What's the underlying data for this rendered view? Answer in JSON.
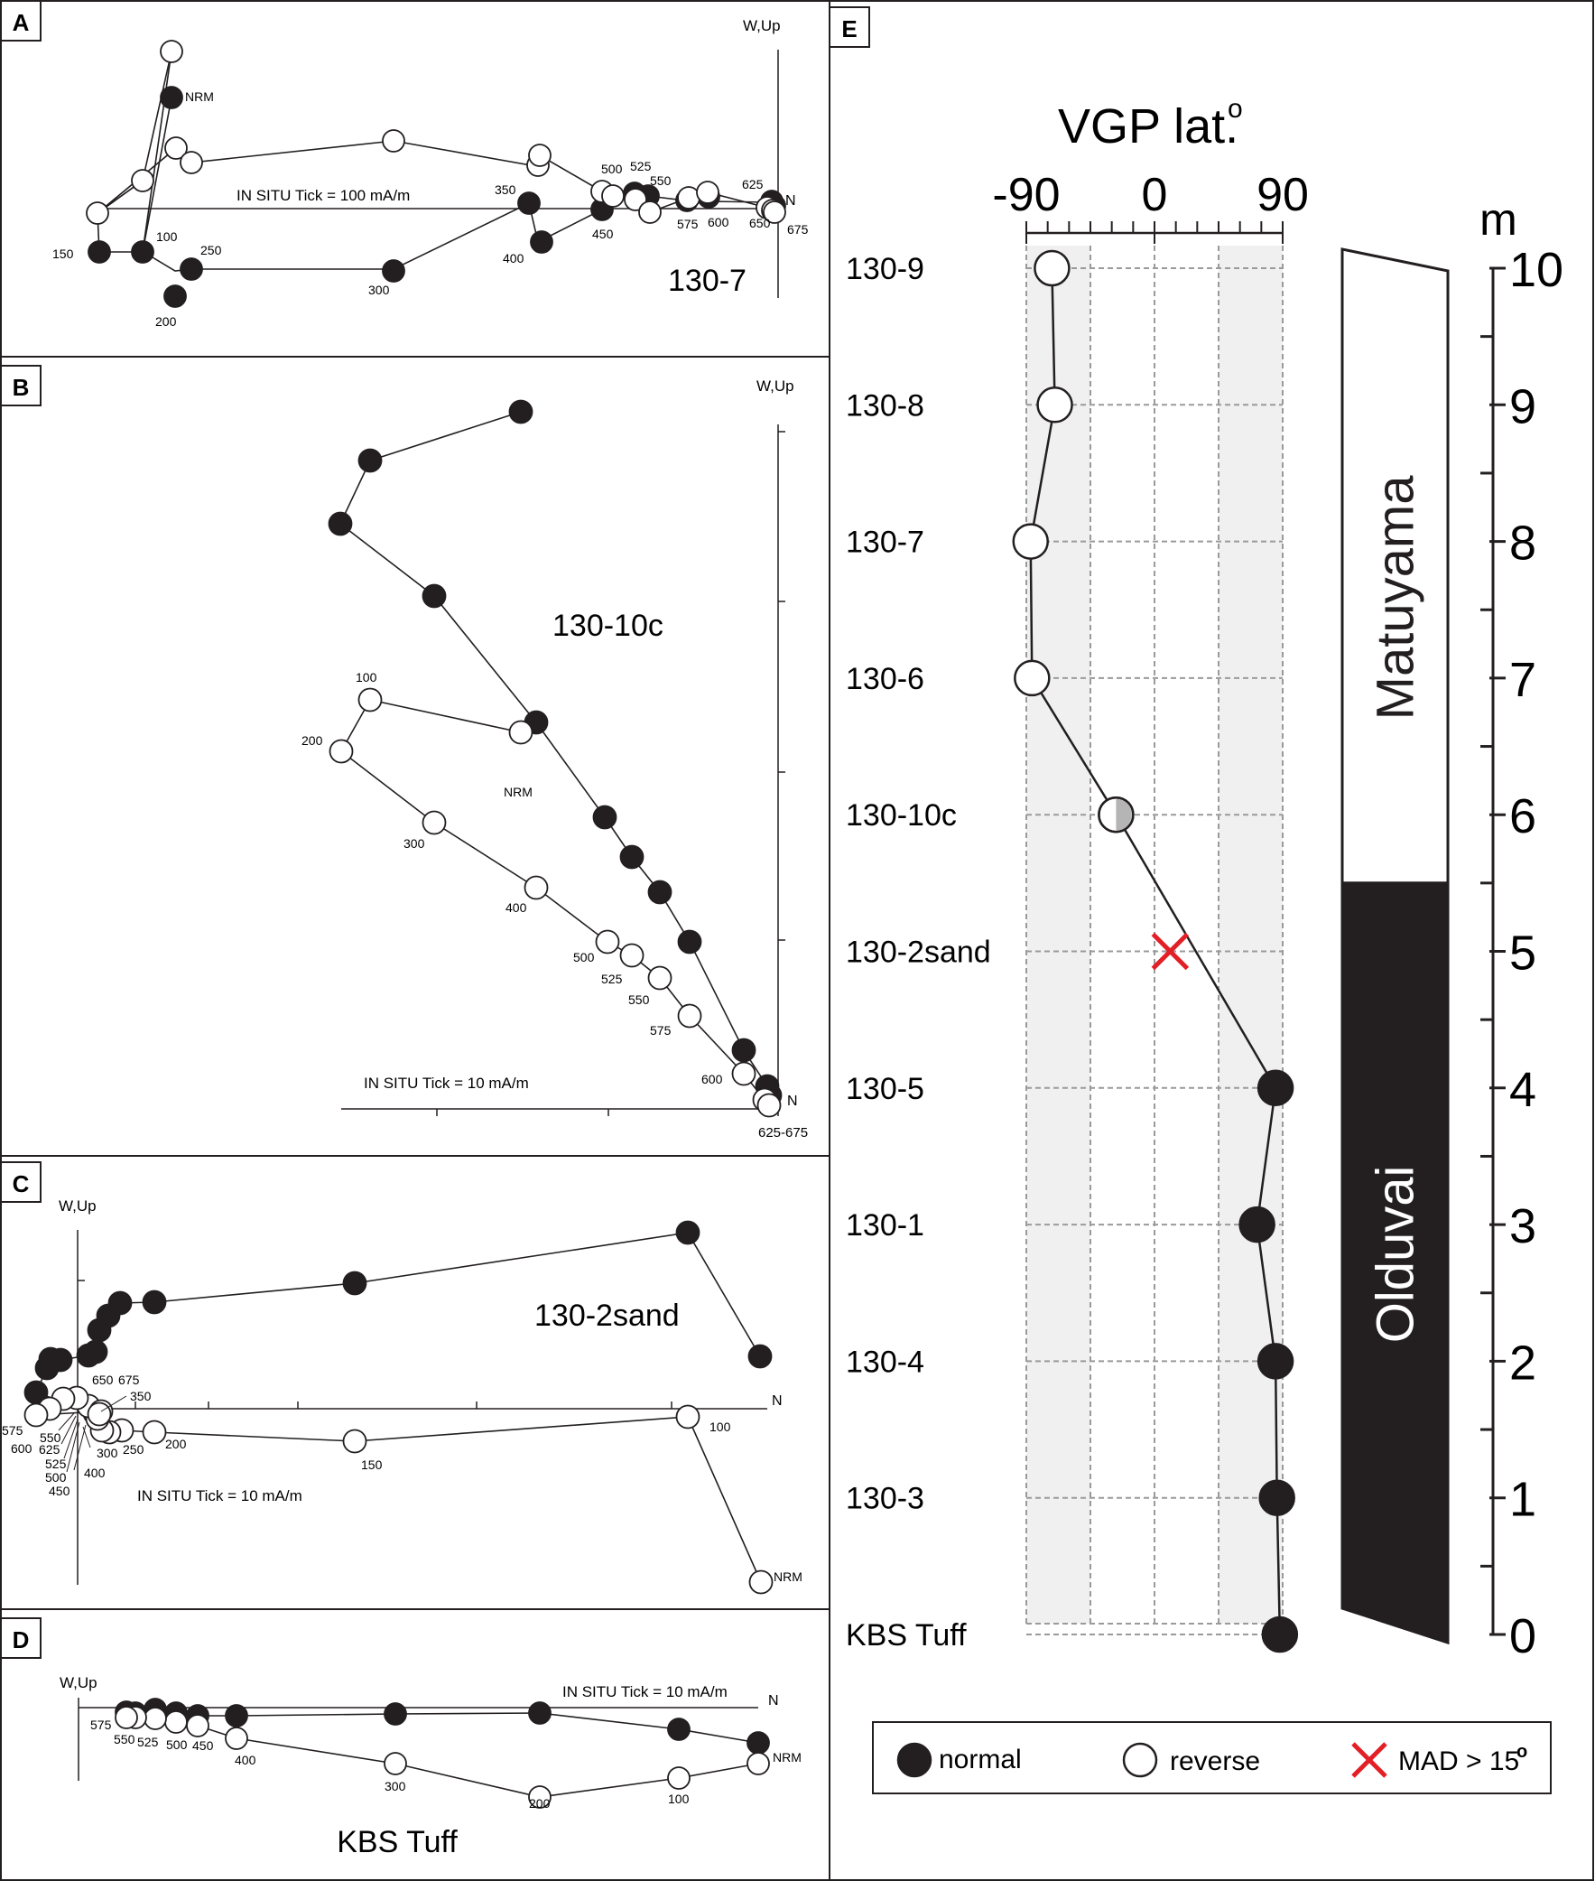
{
  "chart_data": [
    {
      "panel": "A",
      "type": "scatter",
      "sample": "130-7",
      "axis_label": "W,Up",
      "north_label": "N",
      "note": "IN SITU  Tick = 100 mA/m",
      "horizontal": [
        {
          "step": "NRM",
          "x": -513,
          "y": 1.5
        },
        {
          "step": "100",
          "x": -529,
          "y": -0.3
        },
        {
          "step": "150",
          "x": -593,
          "y": -0.4
        },
        {
          "step": "200",
          "x": -516,
          "y": -0.8
        },
        {
          "step": "250",
          "x": -508,
          "y": -0.55
        },
        {
          "step": "300",
          "x": -336,
          "y": -0.55
        },
        {
          "step": "350",
          "x": -213,
          "y": 0.05
        },
        {
          "step": "400",
          "x": -206,
          "y": -0.3
        },
        {
          "step": "450",
          "x": -149,
          "y": 0
        },
        {
          "step": "500",
          "x": -123,
          "y": 0.15
        },
        {
          "step": "525",
          "x": -117,
          "y": 0.15
        },
        {
          "step": "550",
          "x": -111,
          "y": 0.1
        },
        {
          "step": "575",
          "x": -83,
          "y": 0.1
        },
        {
          "step": "600",
          "x": -69,
          "y": 0.1
        },
        {
          "step": "625",
          "x": -10,
          "y": 0.08
        },
        {
          "step": "650",
          "x": -9,
          "y": 0.05
        },
        {
          "step": "675",
          "x": -8,
          "y": 0.03
        }
      ],
      "vertical": [
        {
          "step": "NRM",
          "x": -513,
          "y": 1.3
        },
        {
          "step": "100",
          "x": -532,
          "y": 0.25
        },
        {
          "step": "150",
          "x": -547,
          "y": 0.4
        },
        {
          "step": "200",
          "x": -533,
          "y": 0.55
        },
        {
          "step": "250",
          "x": -525,
          "y": 0.45
        },
        {
          "step": "300",
          "x": -339,
          "y": 0.6
        },
        {
          "step": "350",
          "x": -213,
          "y": 0.45
        },
        {
          "step": "400",
          "x": -209,
          "y": 0.5
        },
        {
          "step": "450",
          "x": -142,
          "y": 0.12
        },
        {
          "step": "500",
          "x": -138,
          "y": 0.12
        },
        {
          "step": "525",
          "x": -108,
          "y": 0.05
        },
        {
          "step": "550",
          "x": -105,
          "y": 0.05
        },
        {
          "step": "575",
          "x": -75,
          "y": 0.1
        },
        {
          "step": "600",
          "x": -58,
          "y": 0.12
        },
        {
          "step": "625",
          "x": -12,
          "y": 0
        },
        {
          "step": "650",
          "x": -4,
          "y": 0
        },
        {
          "step": "675",
          "x": -3,
          "y": 0
        }
      ],
      "labels": [
        "NRM",
        "100",
        "150",
        "200",
        "250",
        "300",
        "350",
        "400",
        "450",
        "500",
        "525",
        "550",
        "575",
        "600",
        "625",
        "650",
        "675"
      ]
    },
    {
      "panel": "B",
      "type": "scatter",
      "sample": "130-10c",
      "axis_label": "W,Up",
      "north_label": "N",
      "note": "IN SITU  Tick = 10 mA/m",
      "end_label": "625-675",
      "labels": [
        "100",
        "200",
        "NRM",
        "300",
        "400",
        "500",
        "525",
        "550",
        "575",
        "600"
      ]
    },
    {
      "panel": "C",
      "type": "scatter",
      "sample": "130-2sand",
      "axis_label": "W,Up",
      "north_label": "N",
      "note": "IN SITU  Tick = 10 mA/m",
      "labels": [
        "650",
        "675",
        "350",
        "575",
        "550",
        "600",
        "625",
        "525",
        "500",
        "450",
        "300",
        "400",
        "250",
        "200",
        "150",
        "100",
        "NRM"
      ]
    },
    {
      "panel": "D",
      "type": "scatter",
      "sample": "KBS Tuff",
      "axis_label": "W,Up",
      "north_label": "N",
      "note": "IN SITU  Tick = 10 mA/m",
      "labels": [
        "575",
        "550",
        "525",
        "500",
        "450",
        "400",
        "300",
        "200",
        "100",
        "NRM"
      ]
    },
    {
      "panel": "E",
      "type": "line",
      "title": "VGP lat.",
      "title_sup": "o",
      "x_ticks": [
        "-90",
        "0",
        "90"
      ],
      "xlim": [
        -90,
        90
      ],
      "y_unit": "m",
      "y_ticks": [
        "0",
        "1",
        "2",
        "3",
        "4",
        "5",
        "6",
        "7",
        "8",
        "9",
        "10"
      ],
      "ylim": [
        0,
        10
      ],
      "points": [
        {
          "sample": "130-9",
          "height": 10,
          "vgp_lat": -72,
          "polarity": "reverse"
        },
        {
          "sample": "130-8",
          "height": 9,
          "vgp_lat": -70,
          "polarity": "reverse"
        },
        {
          "sample": "130-7",
          "height": 8,
          "vgp_lat": -87,
          "polarity": "reverse"
        },
        {
          "sample": "130-6",
          "height": 7,
          "vgp_lat": -86,
          "polarity": "reverse"
        },
        {
          "sample": "130-10c",
          "height": 6,
          "vgp_lat": -27,
          "polarity": "transitional"
        },
        {
          "sample": "130-2sand",
          "height": 5,
          "vgp_lat": 11,
          "polarity": "mad"
        },
        {
          "sample": "130-5",
          "height": 4,
          "vgp_lat": 85,
          "polarity": "normal"
        },
        {
          "sample": "130-1",
          "height": 3,
          "vgp_lat": 72,
          "polarity": "normal"
        },
        {
          "sample": "130-4",
          "height": 2,
          "vgp_lat": 85,
          "polarity": "normal"
        },
        {
          "sample": "130-3",
          "height": 1,
          "vgp_lat": 86,
          "polarity": "normal"
        },
        {
          "sample": "KBS Tuff",
          "height": 0,
          "vgp_lat": 88,
          "polarity": "normal"
        }
      ],
      "polarity_zones": [
        {
          "name": "Matuyama",
          "from": 5.5,
          "to": 10,
          "color": "#ffffff"
        },
        {
          "name": "Olduvai",
          "from": 0,
          "to": 5.5,
          "color": "#231f20"
        }
      ],
      "legend": [
        {
          "label": "normal",
          "symbol": "filled-circle"
        },
        {
          "label": "reverse",
          "symbol": "open-circle"
        },
        {
          "label": "MAD > 15",
          "sup": "o",
          "symbol": "red-cross"
        }
      ]
    }
  ],
  "panel_letters": [
    "A",
    "B",
    "C",
    "D",
    "E"
  ],
  "colors": {
    "line": "#231f20",
    "mad_cross": "#e21f26",
    "shade": "#f0f0f0",
    "grid": "#9a9a9a"
  }
}
